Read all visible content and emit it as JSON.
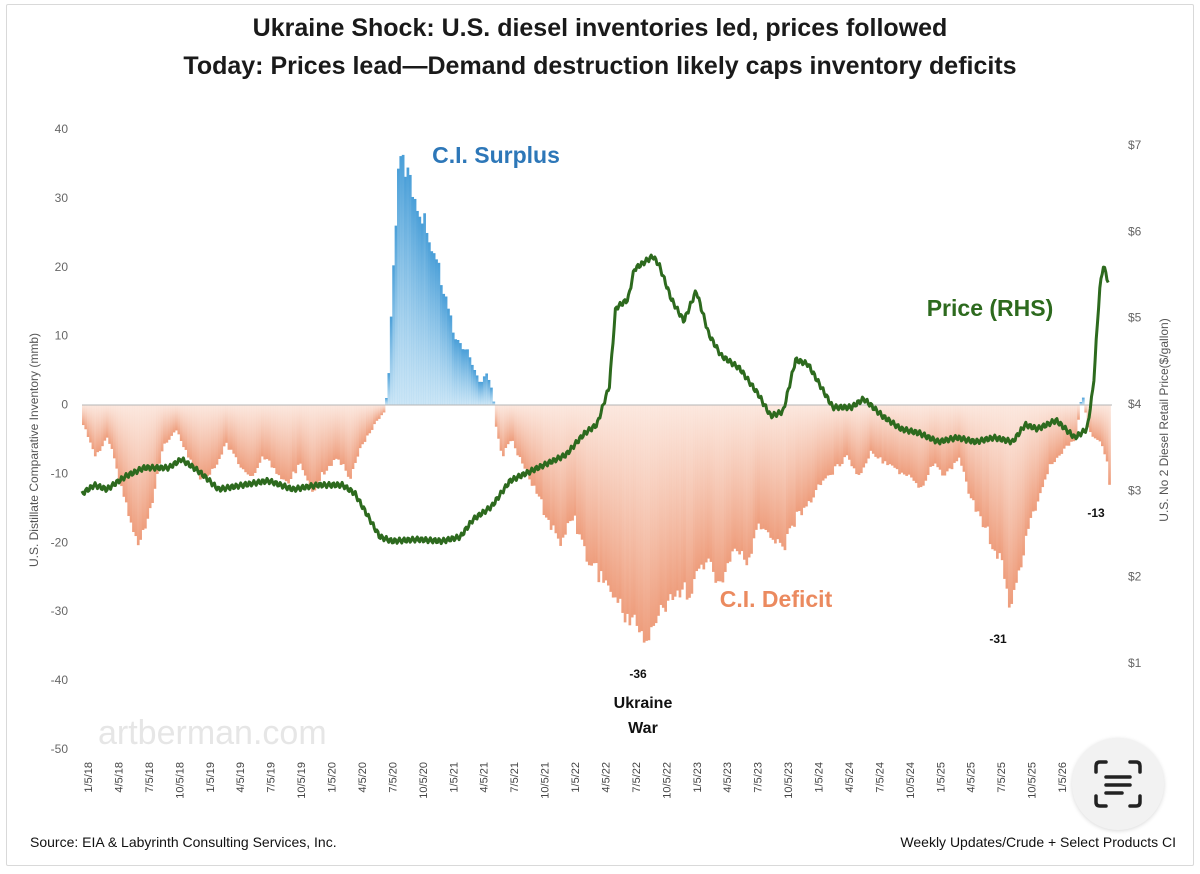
{
  "chart_data": {
    "type": "area",
    "title": "Ukraine Shock: U.S. diesel inventories led, prices followed",
    "subtitle": "Today: Prices lead—Demand destruction likely caps inventory deficits",
    "ylabel_left": "U.S. Distillate Comparative Inventory (mmb)",
    "ylabel_right": "U.S. No 2 Diesel Retail Price($/gallon)",
    "ylim_left": [
      -50,
      40
    ],
    "ylim_right": [
      0.2,
      7.4
    ],
    "left_ticks": [
      "40",
      "30",
      "20",
      "10",
      "0",
      "-10",
      "-20",
      "-30",
      "-40",
      "-50"
    ],
    "right_ticks": [
      "$7",
      "$6",
      "$5",
      "$4",
      "$3",
      "$2",
      "$1"
    ],
    "x_ticks": [
      "1/5/18",
      "4/5/18",
      "7/5/18",
      "10/5/18",
      "1/5/19",
      "4/5/19",
      "7/5/19",
      "10/5/19",
      "1/5/20",
      "4/5/20",
      "7/5/20",
      "10/5/20",
      "1/5/21",
      "4/5/21",
      "7/5/21",
      "10/5/21",
      "1/5/22",
      "4/5/22",
      "7/5/22",
      "10/5/22",
      "1/5/23",
      "4/5/23",
      "7/5/23",
      "10/5/23",
      "1/5/24",
      "4/5/24",
      "7/5/24",
      "10/5/24",
      "1/5/25",
      "4/5/25",
      "7/5/25",
      "10/5/25",
      "1/5/26"
    ],
    "grid": false,
    "series": [
      {
        "name": "C.I.",
        "axis": "left",
        "color_surplus": "#4a9fd8",
        "color_deficit": "#f0a98a",
        "points": [
          [
            2018.0,
            -3
          ],
          [
            2018.1,
            -8
          ],
          [
            2018.2,
            -5
          ],
          [
            2018.3,
            -12
          ],
          [
            2018.4,
            -19
          ],
          [
            2018.45,
            -21
          ],
          [
            2018.55,
            -15
          ],
          [
            2018.65,
            -6
          ],
          [
            2018.75,
            -4
          ],
          [
            2018.85,
            -8
          ],
          [
            2018.95,
            -12
          ],
          [
            2019.05,
            -10
          ],
          [
            2019.15,
            -6
          ],
          [
            2019.25,
            -9
          ],
          [
            2019.35,
            -11
          ],
          [
            2019.45,
            -8
          ],
          [
            2019.55,
            -10
          ],
          [
            2019.65,
            -12
          ],
          [
            2019.75,
            -9
          ],
          [
            2019.85,
            -13
          ],
          [
            2019.95,
            -10
          ],
          [
            2020.05,
            -8
          ],
          [
            2020.15,
            -11
          ],
          [
            2020.25,
            -6
          ],
          [
            2020.35,
            -3
          ],
          [
            2020.43,
            -1
          ],
          [
            2020.46,
            4
          ],
          [
            2020.5,
            22
          ],
          [
            2020.55,
            38
          ],
          [
            2020.6,
            36
          ],
          [
            2020.65,
            33
          ],
          [
            2020.7,
            30
          ],
          [
            2020.75,
            28
          ],
          [
            2020.8,
            25
          ],
          [
            2020.85,
            22
          ],
          [
            2020.9,
            18
          ],
          [
            2020.95,
            14
          ],
          [
            2021.0,
            10
          ],
          [
            2021.1,
            8
          ],
          [
            2021.2,
            3
          ],
          [
            2021.25,
            5
          ],
          [
            2021.3,
            2
          ],
          [
            2021.33,
            -4
          ],
          [
            2021.38,
            -8
          ],
          [
            2021.45,
            -5
          ],
          [
            2021.55,
            -10
          ],
          [
            2021.65,
            -13
          ],
          [
            2021.75,
            -18
          ],
          [
            2021.85,
            -21
          ],
          [
            2021.95,
            -17
          ],
          [
            2022.05,
            -23
          ],
          [
            2022.15,
            -26
          ],
          [
            2022.25,
            -28
          ],
          [
            2022.35,
            -32
          ],
          [
            2022.45,
            -33
          ],
          [
            2022.5,
            -35
          ],
          [
            2022.55,
            -36
          ],
          [
            2022.6,
            -33
          ],
          [
            2022.7,
            -31
          ],
          [
            2022.8,
            -29
          ],
          [
            2022.9,
            -28
          ],
          [
            2023.0,
            -24
          ],
          [
            2023.1,
            -26
          ],
          [
            2023.15,
            -27
          ],
          [
            2023.25,
            -22
          ],
          [
            2023.35,
            -24
          ],
          [
            2023.45,
            -18
          ],
          [
            2023.55,
            -21
          ],
          [
            2023.65,
            -22
          ],
          [
            2023.75,
            -17
          ],
          [
            2023.85,
            -15
          ],
          [
            2023.95,
            -12
          ],
          [
            2024.05,
            -10
          ],
          [
            2024.15,
            -8
          ],
          [
            2024.25,
            -11
          ],
          [
            2024.35,
            -7
          ],
          [
            2024.45,
            -9
          ],
          [
            2024.55,
            -10
          ],
          [
            2024.65,
            -11
          ],
          [
            2024.75,
            -13
          ],
          [
            2024.85,
            -9
          ],
          [
            2024.95,
            -11
          ],
          [
            2025.05,
            -8
          ],
          [
            2025.15,
            -14
          ],
          [
            2025.25,
            -18
          ],
          [
            2025.35,
            -22
          ],
          [
            2025.42,
            -25
          ],
          [
            2025.47,
            -31
          ],
          [
            2025.52,
            -28
          ],
          [
            2025.6,
            -20
          ],
          [
            2025.7,
            -14
          ],
          [
            2025.8,
            -9
          ],
          [
            2025.9,
            -7
          ],
          [
            2026.0,
            -5
          ],
          [
            2026.05,
            2
          ],
          [
            2026.1,
            -4
          ],
          [
            2026.2,
            -6
          ],
          [
            2026.25,
            -9
          ],
          [
            2026.27,
            -13
          ]
        ]
      },
      {
        "name": "Price (RHS)",
        "axis": "right",
        "color": "#2d6a1e",
        "points": [
          [
            2018.0,
            2.95
          ],
          [
            2018.1,
            3.05
          ],
          [
            2018.2,
            3.0
          ],
          [
            2018.35,
            3.15
          ],
          [
            2018.5,
            3.25
          ],
          [
            2018.7,
            3.25
          ],
          [
            2018.8,
            3.35
          ],
          [
            2018.95,
            3.2
          ],
          [
            2019.1,
            3.0
          ],
          [
            2019.3,
            3.05
          ],
          [
            2019.5,
            3.1
          ],
          [
            2019.7,
            3.0
          ],
          [
            2019.9,
            3.05
          ],
          [
            2020.1,
            3.05
          ],
          [
            2020.2,
            2.95
          ],
          [
            2020.3,
            2.7
          ],
          [
            2020.4,
            2.45
          ],
          [
            2020.5,
            2.4
          ],
          [
            2020.7,
            2.42
          ],
          [
            2020.9,
            2.4
          ],
          [
            2021.05,
            2.45
          ],
          [
            2021.15,
            2.65
          ],
          [
            2021.3,
            2.8
          ],
          [
            2021.45,
            3.1
          ],
          [
            2021.6,
            3.2
          ],
          [
            2021.75,
            3.3
          ],
          [
            2021.9,
            3.4
          ],
          [
            2022.05,
            3.65
          ],
          [
            2022.15,
            3.75
          ],
          [
            2022.25,
            4.2
          ],
          [
            2022.3,
            5.1
          ],
          [
            2022.4,
            5.2
          ],
          [
            2022.45,
            5.55
          ],
          [
            2022.6,
            5.7
          ],
          [
            2022.65,
            5.6
          ],
          [
            2022.75,
            5.2
          ],
          [
            2022.85,
            4.95
          ],
          [
            2022.95,
            5.3
          ],
          [
            2023.05,
            4.8
          ],
          [
            2023.15,
            4.55
          ],
          [
            2023.3,
            4.4
          ],
          [
            2023.45,
            4.1
          ],
          [
            2023.55,
            3.85
          ],
          [
            2023.65,
            3.9
          ],
          [
            2023.75,
            4.5
          ],
          [
            2023.85,
            4.45
          ],
          [
            2023.95,
            4.2
          ],
          [
            2024.05,
            3.95
          ],
          [
            2024.2,
            3.95
          ],
          [
            2024.3,
            4.05
          ],
          [
            2024.45,
            3.85
          ],
          [
            2024.6,
            3.7
          ],
          [
            2024.75,
            3.65
          ],
          [
            2024.9,
            3.55
          ],
          [
            2025.05,
            3.6
          ],
          [
            2025.2,
            3.55
          ],
          [
            2025.35,
            3.6
          ],
          [
            2025.5,
            3.55
          ],
          [
            2025.6,
            3.75
          ],
          [
            2025.7,
            3.7
          ],
          [
            2025.85,
            3.8
          ],
          [
            2026.0,
            3.6
          ],
          [
            2026.1,
            3.7
          ],
          [
            2026.15,
            4.2
          ],
          [
            2026.2,
            5.3
          ],
          [
            2026.23,
            5.6
          ],
          [
            2026.27,
            5.4
          ]
        ]
      }
    ],
    "annotations": [
      {
        "text": "C.I. Surplus",
        "color": "#2d77b8"
      },
      {
        "text": "C.I. Deficit",
        "color": "#eb8a5f"
      },
      {
        "text": "Price (RHS)",
        "color": "#2d6a1e"
      },
      {
        "text": "-36"
      },
      {
        "text": "Ukraine"
      },
      {
        "text": "War"
      },
      {
        "text": "-31"
      },
      {
        "text": "-13"
      }
    ]
  },
  "watermark": "artberman.com",
  "footer": {
    "source": "Source:  EIA & Labyrinth Consulting Services, Inc.",
    "updates": "Weekly Updates/Crude + Select Products CI"
  },
  "lens_icon": "text-scan-icon"
}
